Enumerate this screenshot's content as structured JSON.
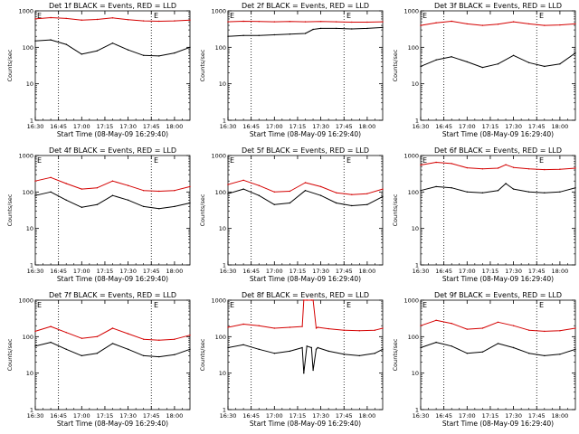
{
  "colors": {
    "events": "#000000",
    "lld": "#d40000",
    "axis": "#000000",
    "background": "#ffffff"
  },
  "chart_data": [
    {
      "type": "line",
      "title": "Det 1f BLACK = Events, RED = LLD",
      "xlabel": "Start Time (08-May-09 16:29:40)",
      "ylabel": "Counts/sec",
      "x_ticks": [
        "16:30",
        "16:45",
        "17:00",
        "17:15",
        "17:30",
        "17:45",
        "18:00"
      ],
      "y_ticks": [
        "1",
        "10",
        "100",
        "1000"
      ],
      "ylim": [
        1,
        1000
      ],
      "ylog": true,
      "dotted_lines_at": [
        "16:45",
        "17:45"
      ],
      "corner_marks": [
        "E",
        "E"
      ],
      "series": [
        {
          "color": "black",
          "time": [
            "16:30",
            "16:40",
            "16:50",
            "17:00",
            "17:10",
            "17:20",
            "17:30",
            "17:40",
            "17:50",
            "18:00",
            "18:10"
          ],
          "values": [
            150,
            160,
            120,
            65,
            80,
            130,
            85,
            60,
            58,
            70,
            100
          ]
        },
        {
          "color": "red",
          "time": [
            "16:30",
            "16:40",
            "16:50",
            "17:00",
            "17:10",
            "17:20",
            "17:30",
            "17:40",
            "17:50",
            "18:00",
            "18:10"
          ],
          "values": [
            600,
            650,
            620,
            560,
            580,
            640,
            570,
            530,
            520,
            530,
            560
          ]
        }
      ]
    },
    {
      "type": "line",
      "title": "Det 2f BLACK = Events, RED = LLD",
      "xlabel": "Start Time (08-May-09 16:29:40)",
      "ylabel": "Counts/sec",
      "x_ticks": [
        "16:30",
        "16:45",
        "17:00",
        "17:15",
        "17:30",
        "17:45",
        "18:00"
      ],
      "y_ticks": [
        "1",
        "10",
        "100",
        "1000"
      ],
      "ylim": [
        1,
        1000
      ],
      "ylog": true,
      "dotted_lines_at": [
        "16:45",
        "17:45"
      ],
      "corner_marks": [
        "E",
        "E"
      ],
      "series": [
        {
          "color": "black",
          "time": [
            "16:30",
            "16:40",
            "16:50",
            "17:00",
            "17:10",
            "17:20",
            "17:25",
            "17:30",
            "17:40",
            "17:50",
            "18:00",
            "18:10"
          ],
          "values": [
            200,
            210,
            210,
            220,
            230,
            240,
            310,
            330,
            330,
            320,
            330,
            350
          ]
        },
        {
          "color": "red",
          "time": [
            "16:30",
            "16:40",
            "16:50",
            "17:00",
            "17:10",
            "17:20",
            "17:30",
            "17:40",
            "17:50",
            "18:00",
            "18:10"
          ],
          "values": [
            500,
            520,
            510,
            500,
            510,
            500,
            510,
            500,
            490,
            490,
            500
          ]
        }
      ]
    },
    {
      "type": "line",
      "title": "Det 3f BLACK = Events, RED = LLD",
      "xlabel": "Start Time (08-May-09 16:29:40)",
      "ylabel": "Counts/sec",
      "x_ticks": [
        "16:30",
        "16:45",
        "17:00",
        "17:15",
        "17:30",
        "17:45",
        "18:00"
      ],
      "y_ticks": [
        "1",
        "10",
        "100",
        "1000"
      ],
      "ylim": [
        1,
        1000
      ],
      "ylog": true,
      "dotted_lines_at": [
        "16:45",
        "17:45"
      ],
      "corner_marks": [
        "E",
        "E"
      ],
      "series": [
        {
          "color": "black",
          "time": [
            "16:30",
            "16:40",
            "16:50",
            "17:00",
            "17:10",
            "17:20",
            "17:30",
            "17:40",
            "17:50",
            "18:00",
            "18:10"
          ],
          "values": [
            30,
            45,
            55,
            40,
            28,
            35,
            60,
            38,
            30,
            35,
            70
          ]
        },
        {
          "color": "red",
          "time": [
            "16:30",
            "16:40",
            "16:50",
            "17:00",
            "17:10",
            "17:20",
            "17:30",
            "17:40",
            "17:50",
            "18:00",
            "18:10"
          ],
          "values": [
            400,
            470,
            520,
            440,
            400,
            430,
            500,
            440,
            400,
            410,
            440
          ]
        }
      ]
    },
    {
      "type": "line",
      "title": "Det 4f BLACK = Events, RED = LLD",
      "xlabel": "Start Time (08-May-09 16:29:40)",
      "ylabel": "Counts/sec",
      "x_ticks": [
        "16:30",
        "16:45",
        "17:00",
        "17:15",
        "17:30",
        "17:45",
        "18:00"
      ],
      "y_ticks": [
        "1",
        "10",
        "100",
        "1000"
      ],
      "ylim": [
        1,
        1000
      ],
      "ylog": true,
      "dotted_lines_at": [
        "16:45",
        "17:45"
      ],
      "corner_marks": [
        "E",
        "E"
      ],
      "series": [
        {
          "color": "black",
          "time": [
            "16:30",
            "16:40",
            "16:50",
            "17:00",
            "17:10",
            "17:20",
            "17:30",
            "17:40",
            "17:50",
            "18:00",
            "18:10"
          ],
          "values": [
            80,
            100,
            60,
            38,
            45,
            80,
            60,
            40,
            35,
            40,
            50
          ]
        },
        {
          "color": "red",
          "time": [
            "16:30",
            "16:40",
            "16:50",
            "17:00",
            "17:10",
            "17:20",
            "17:30",
            "17:40",
            "17:50",
            "18:00",
            "18:10"
          ],
          "values": [
            200,
            250,
            170,
            120,
            130,
            200,
            150,
            110,
            105,
            110,
            140
          ]
        }
      ]
    },
    {
      "type": "line",
      "title": "Det 5f BLACK = Events, RED = LLD",
      "xlabel": "Start Time (08-May-09 16:29:40)",
      "ylabel": "Counts/sec",
      "x_ticks": [
        "16:30",
        "16:45",
        "17:00",
        "17:15",
        "17:30",
        "17:45",
        "18:00"
      ],
      "y_ticks": [
        "1",
        "10",
        "100",
        "1000"
      ],
      "ylim": [
        1,
        1000
      ],
      "ylog": true,
      "dotted_lines_at": [
        "16:45",
        "17:45"
      ],
      "corner_marks": [
        "E",
        "E"
      ],
      "series": [
        {
          "color": "black",
          "time": [
            "16:30",
            "16:40",
            "16:50",
            "17:00",
            "17:10",
            "17:20",
            "17:30",
            "17:40",
            "17:50",
            "18:00",
            "18:10"
          ],
          "values": [
            90,
            120,
            80,
            45,
            50,
            110,
            80,
            50,
            42,
            45,
            75
          ]
        },
        {
          "color": "red",
          "time": [
            "16:30",
            "16:40",
            "16:50",
            "17:00",
            "17:10",
            "17:20",
            "17:30",
            "17:40",
            "17:50",
            "18:00",
            "18:10"
          ],
          "values": [
            160,
            210,
            150,
            100,
            105,
            180,
            140,
            95,
            85,
            90,
            120
          ]
        }
      ]
    },
    {
      "type": "line",
      "title": "Det 6f BLACK = Events, RED = LLD",
      "xlabel": "Start Time (08-May-09 16:29:40)",
      "ylabel": "Counts/sec",
      "x_ticks": [
        "16:30",
        "16:45",
        "17:00",
        "17:15",
        "17:30",
        "17:45",
        "18:00"
      ],
      "y_ticks": [
        "1",
        "10",
        "100",
        "1000"
      ],
      "ylim": [
        1,
        1000
      ],
      "ylog": true,
      "dotted_lines_at": [
        "16:45",
        "17:45"
      ],
      "corner_marks": [
        "E",
        "E"
      ],
      "series": [
        {
          "color": "black",
          "time": [
            "16:30",
            "16:40",
            "16:50",
            "17:00",
            "17:10",
            "17:20",
            "17:25",
            "17:30",
            "17:40",
            "17:50",
            "18:00",
            "18:10"
          ],
          "values": [
            110,
            140,
            130,
            100,
            95,
            110,
            170,
            120,
            100,
            95,
            100,
            130
          ]
        },
        {
          "color": "red",
          "time": [
            "16:30",
            "16:40",
            "16:50",
            "17:00",
            "17:10",
            "17:20",
            "17:25",
            "17:30",
            "17:40",
            "17:50",
            "18:00",
            "18:10"
          ],
          "values": [
            550,
            650,
            600,
            460,
            430,
            450,
            560,
            470,
            430,
            410,
            420,
            450
          ]
        }
      ]
    },
    {
      "type": "line",
      "title": "Det 7f BLACK = Events, RED = LLD",
      "xlabel": "Start Time (08-May-09 16:29:40)",
      "ylabel": "Counts/sec",
      "x_ticks": [
        "16:30",
        "16:45",
        "17:00",
        "17:15",
        "17:30",
        "17:45",
        "18:00"
      ],
      "y_ticks": [
        "1",
        "10",
        "100",
        "1000"
      ],
      "ylim": [
        1,
        1000
      ],
      "ylog": true,
      "dotted_lines_at": [
        "16:45",
        "17:45"
      ],
      "corner_marks": [
        "E",
        "E"
      ],
      "series": [
        {
          "color": "black",
          "time": [
            "16:30",
            "16:40",
            "16:50",
            "17:00",
            "17:10",
            "17:20",
            "17:30",
            "17:40",
            "17:50",
            "18:00",
            "18:10"
          ],
          "values": [
            55,
            70,
            45,
            30,
            35,
            65,
            45,
            30,
            28,
            32,
            45
          ]
        },
        {
          "color": "red",
          "time": [
            "16:30",
            "16:40",
            "16:50",
            "17:00",
            "17:10",
            "17:20",
            "17:30",
            "17:40",
            "17:50",
            "18:00",
            "18:10"
          ],
          "values": [
            140,
            190,
            130,
            90,
            100,
            170,
            120,
            85,
            80,
            85,
            110
          ]
        }
      ]
    },
    {
      "type": "line",
      "title": "Det 8f BLACK = Events, RED = LLD",
      "xlabel": "Start Time (08-May-09 16:29:40)",
      "ylabel": "Counts/sec",
      "x_ticks": [
        "16:30",
        "16:45",
        "17:00",
        "17:15",
        "17:30",
        "17:45",
        "18:00"
      ],
      "y_ticks": [
        "1",
        "10",
        "100",
        "1000"
      ],
      "ylim": [
        1,
        1000
      ],
      "ylog": true,
      "dotted_lines_at": [
        "16:45",
        "17:45"
      ],
      "corner_marks": [
        "E",
        "E"
      ],
      "series": [
        {
          "color": "black",
          "time": [
            "16:30",
            "16:40",
            "16:50",
            "17:00",
            "17:10",
            "17:18",
            "17:19",
            "17:21",
            "17:24",
            "17:25",
            "17:27",
            "17:28",
            "17:35",
            "17:45",
            "17:55",
            "18:05",
            "18:10"
          ],
          "values": [
            50,
            60,
            45,
            35,
            40,
            50,
            10,
            55,
            50,
            12,
            45,
            50,
            40,
            33,
            30,
            35,
            45
          ]
        },
        {
          "color": "red",
          "time": [
            "16:30",
            "16:40",
            "16:50",
            "17:00",
            "17:10",
            "17:18",
            "17:19",
            "17:21",
            "17:24",
            "17:25",
            "17:27",
            "17:28",
            "17:35",
            "17:45",
            "17:55",
            "18:05",
            "18:10"
          ],
          "values": [
            180,
            220,
            200,
            170,
            180,
            190,
            1000,
            1000,
            1000,
            1000,
            170,
            180,
            165,
            150,
            145,
            150,
            170
          ]
        }
      ]
    },
    {
      "type": "line",
      "title": "Det 9f BLACK = Events, RED = LLD",
      "xlabel": "Start Time (08-May-09 16:29:40)",
      "ylabel": "Counts/sec",
      "x_ticks": [
        "16:30",
        "16:45",
        "17:00",
        "17:15",
        "17:30",
        "17:45",
        "18:00"
      ],
      "y_ticks": [
        "1",
        "10",
        "100",
        "1000"
      ],
      "ylim": [
        1,
        1000
      ],
      "ylog": true,
      "dotted_lines_at": [
        "16:45",
        "17:45"
      ],
      "corner_marks": [
        "E",
        "E"
      ],
      "series": [
        {
          "color": "black",
          "time": [
            "16:30",
            "16:40",
            "16:50",
            "17:00",
            "17:10",
            "17:20",
            "17:30",
            "17:40",
            "17:50",
            "18:00",
            "18:10"
          ],
          "values": [
            50,
            70,
            55,
            35,
            38,
            65,
            50,
            35,
            30,
            33,
            45
          ]
        },
        {
          "color": "red",
          "time": [
            "16:30",
            "16:40",
            "16:50",
            "17:00",
            "17:10",
            "17:20",
            "17:30",
            "17:40",
            "17:50",
            "18:00",
            "18:10"
          ],
          "values": [
            200,
            280,
            230,
            160,
            170,
            250,
            200,
            150,
            140,
            145,
            170
          ]
        }
      ]
    }
  ]
}
